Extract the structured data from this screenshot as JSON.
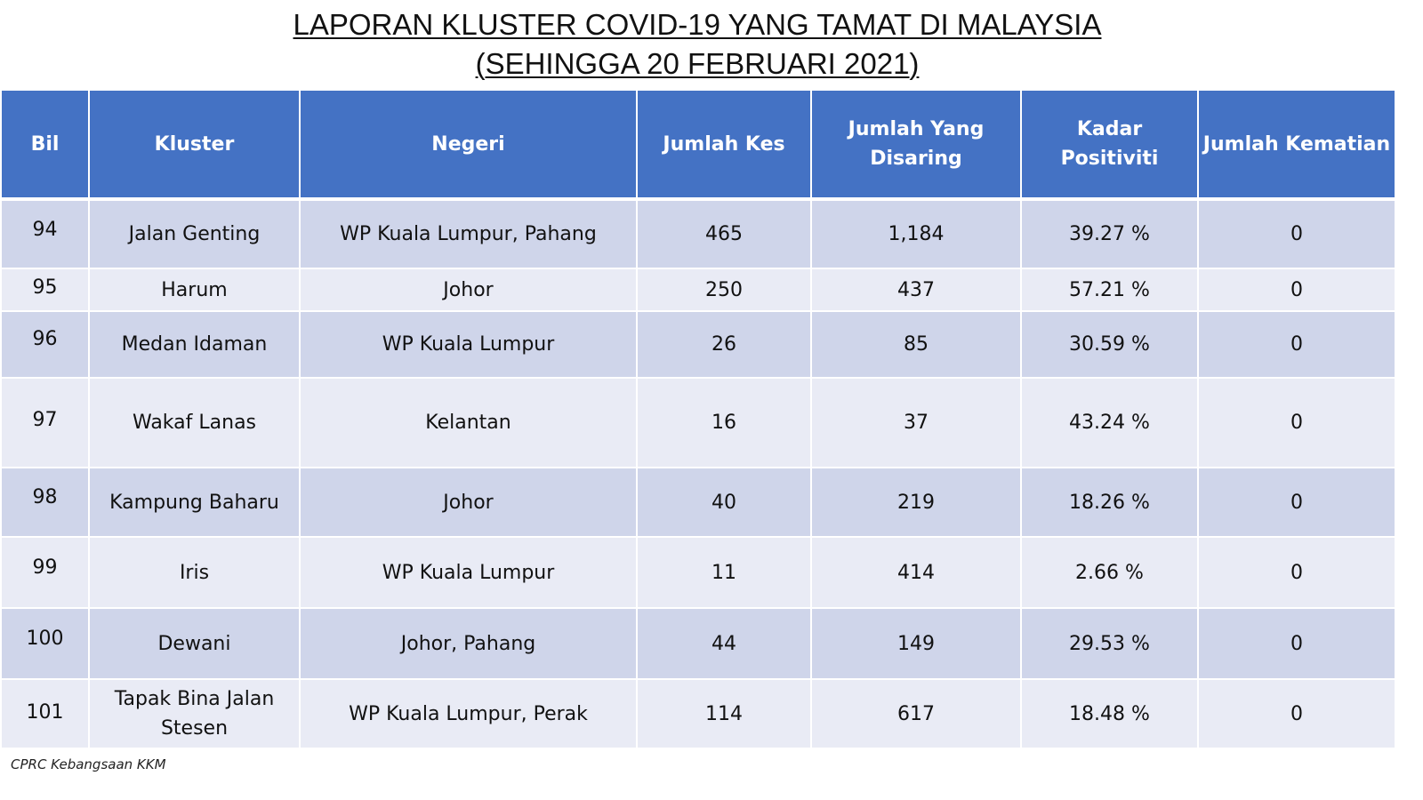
{
  "title": {
    "line1": "LAPORAN KLUSTER COVID-19 YANG TAMAT DI MALAYSIA",
    "line2": "(SEHINGGA  20 FEBRUARI 2021)"
  },
  "table": {
    "headers": [
      "Bil",
      "Kluster",
      "Negeri",
      "Jumlah Kes",
      "Jumlah Yang Disaring",
      "Kadar Positiviti",
      "Jumlah Kematian"
    ],
    "rows": [
      {
        "bil": "94",
        "kluster": "Jalan Genting",
        "negeri": "WP Kuala Lumpur, Pahang",
        "kes": "465",
        "disaring": "1,184",
        "positiviti": "39.27 %",
        "kematian": "0"
      },
      {
        "bil": "95",
        "kluster": "Harum",
        "negeri": "Johor",
        "kes": "250",
        "disaring": "437",
        "positiviti": "57.21 %",
        "kematian": "0"
      },
      {
        "bil": "96",
        "kluster": "Medan Idaman",
        "negeri": "WP Kuala Lumpur",
        "kes": "26",
        "disaring": "85",
        "positiviti": "30.59 %",
        "kematian": "0"
      },
      {
        "bil": "97",
        "kluster": "Wakaf Lanas",
        "negeri": "Kelantan",
        "kes": "16",
        "disaring": "37",
        "positiviti": "43.24 %",
        "kematian": "0"
      },
      {
        "bil": "98",
        "kluster": "Kampung Baharu",
        "negeri": "Johor",
        "kes": "40",
        "disaring": "219",
        "positiviti": "18.26 %",
        "kematian": "0"
      },
      {
        "bil": "99",
        "kluster": "Iris",
        "negeri": "WP Kuala Lumpur",
        "kes": "11",
        "disaring": "414",
        "positiviti": "2.66 %",
        "kematian": "0"
      },
      {
        "bil": "100",
        "kluster": "Dewani",
        "negeri": "Johor, Pahang",
        "kes": "44",
        "disaring": "149",
        "positiviti": "29.53 %",
        "kematian": "0"
      },
      {
        "bil": "101",
        "kluster": "Tapak Bina Jalan Stesen",
        "negeri": "WP Kuala Lumpur, Perak",
        "kes": "114",
        "disaring": "617",
        "positiviti": "18.48 %",
        "kematian": "0"
      }
    ]
  },
  "colors": {
    "header_bg": "#4472c4",
    "row_odd": "#cfd5ea",
    "row_even": "#e9ebf5"
  },
  "footer": "CPRC Kebangsaan KKM"
}
